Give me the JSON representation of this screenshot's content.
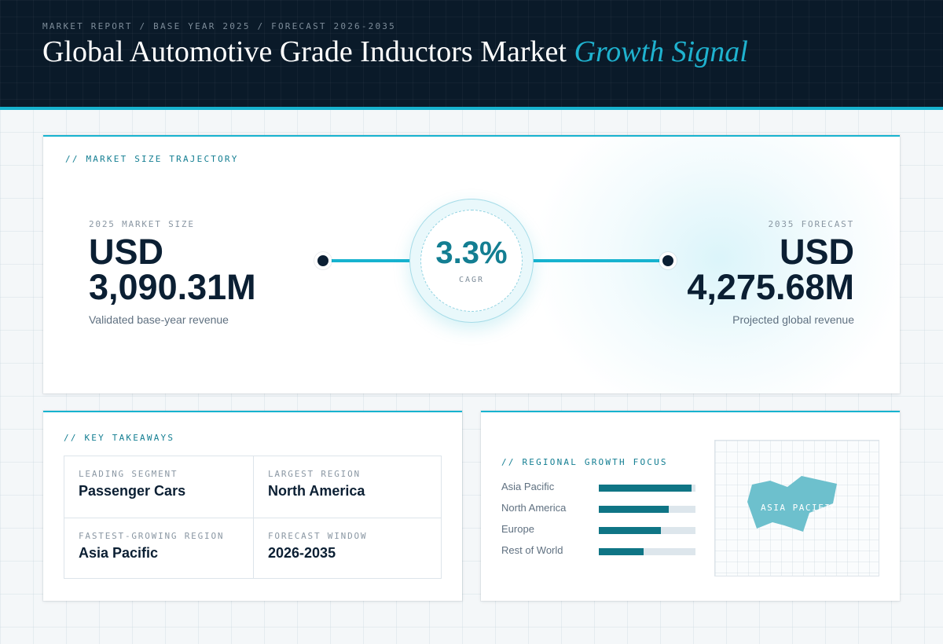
{
  "header": {
    "eyebrow": "MARKET REPORT / BASE YEAR 2025 / FORECAST 2026-2035",
    "title_main": "Global Automotive Grade Inductors Market",
    "title_accent": "Growth Signal"
  },
  "trajectory": {
    "label": "// MARKET SIZE TRAJECTORY",
    "base": {
      "eyebrow": "2025 MARKET SIZE",
      "currency": "USD",
      "value": "3,090.31M",
      "sub": "Validated base-year revenue"
    },
    "cagr": {
      "value": "3.3%",
      "label": "CAGR"
    },
    "forecast": {
      "eyebrow": "2035 FORECAST",
      "currency": "USD",
      "value": "4,275.68M",
      "sub": "Projected global revenue"
    }
  },
  "takeaways": {
    "label": "// KEY TAKEAWAYS",
    "items": [
      {
        "key": "LEADING SEGMENT",
        "value": "Passenger Cars"
      },
      {
        "key": "LARGEST REGION",
        "value": "North America"
      },
      {
        "key": "FASTEST-GROWING REGION",
        "value": "Asia Pacific"
      },
      {
        "key": "FORECAST WINDOW",
        "value": "2026-2035"
      }
    ]
  },
  "regional": {
    "label": "// REGIONAL GROWTH FOCUS",
    "regions": [
      {
        "name": "Asia Pacific",
        "level": 0.96
      },
      {
        "name": "North America",
        "level": 0.72
      },
      {
        "name": "Europe",
        "level": 0.64
      },
      {
        "name": "Rest of World",
        "level": 0.46
      }
    ],
    "map_label": "ASIA PACIFIC",
    "map_color": "#6dc0cd"
  },
  "colors": {
    "accent": "#17b3cf",
    "dark": "#0b1f33",
    "bar": "#0f7585"
  }
}
